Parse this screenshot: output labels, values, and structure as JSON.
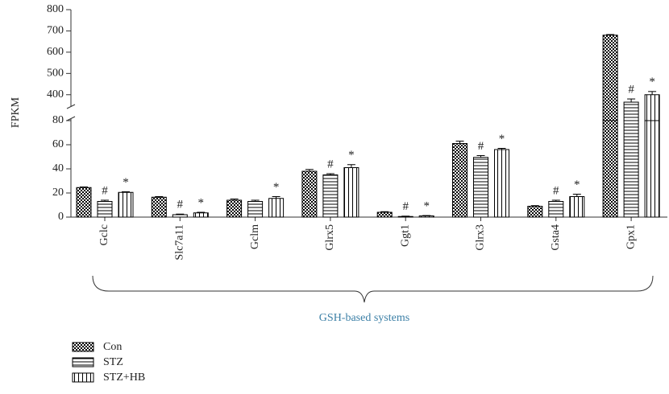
{
  "chart_data": {
    "type": "bar",
    "y_label": "FPKM",
    "group_label": "GSH-based systems",
    "categories": [
      "Gclc",
      "Slc7a11",
      "Gclm",
      "Glrx5",
      "Ggt1",
      "Glrx3",
      "Gsta4",
      "Gpx1"
    ],
    "series": [
      {
        "name": "Con",
        "color": "#000000",
        "pattern": "checker",
        "values": [
          24.5,
          16.5,
          14,
          38,
          4,
          61,
          9,
          680
        ],
        "errors": [
          0.5,
          0.5,
          1,
          1.5,
          0.5,
          2,
          0.5,
          3
        ],
        "annotations": [
          null,
          null,
          null,
          null,
          null,
          null,
          null,
          null
        ]
      },
      {
        "name": "STZ",
        "color": "#000000",
        "pattern": "horizontal",
        "values": [
          13,
          2,
          13,
          35,
          0.5,
          49.5,
          13,
          365
        ],
        "errors": [
          1,
          0.5,
          1,
          1,
          0.3,
          1.5,
          1,
          15
        ],
        "annotations": [
          "#",
          "#",
          null,
          "#",
          "#",
          "#",
          "#",
          "#"
        ]
      },
      {
        "name": "STZ+HB",
        "color": "#000000",
        "pattern": "vertical",
        "values": [
          20.5,
          3.5,
          15.5,
          41,
          1,
          56,
          17,
          400
        ],
        "errors": [
          0.5,
          0.5,
          1.5,
          2.5,
          0.3,
          1,
          2,
          15
        ],
        "annotations": [
          "*",
          "*",
          "*",
          "*",
          "*",
          "*",
          "*",
          "*"
        ]
      }
    ],
    "ylim": [
      0,
      800
    ],
    "axis_break": [
      80,
      350
    ],
    "yticks": [
      0,
      20,
      40,
      60,
      80,
      400,
      500,
      600,
      700,
      800
    ]
  }
}
